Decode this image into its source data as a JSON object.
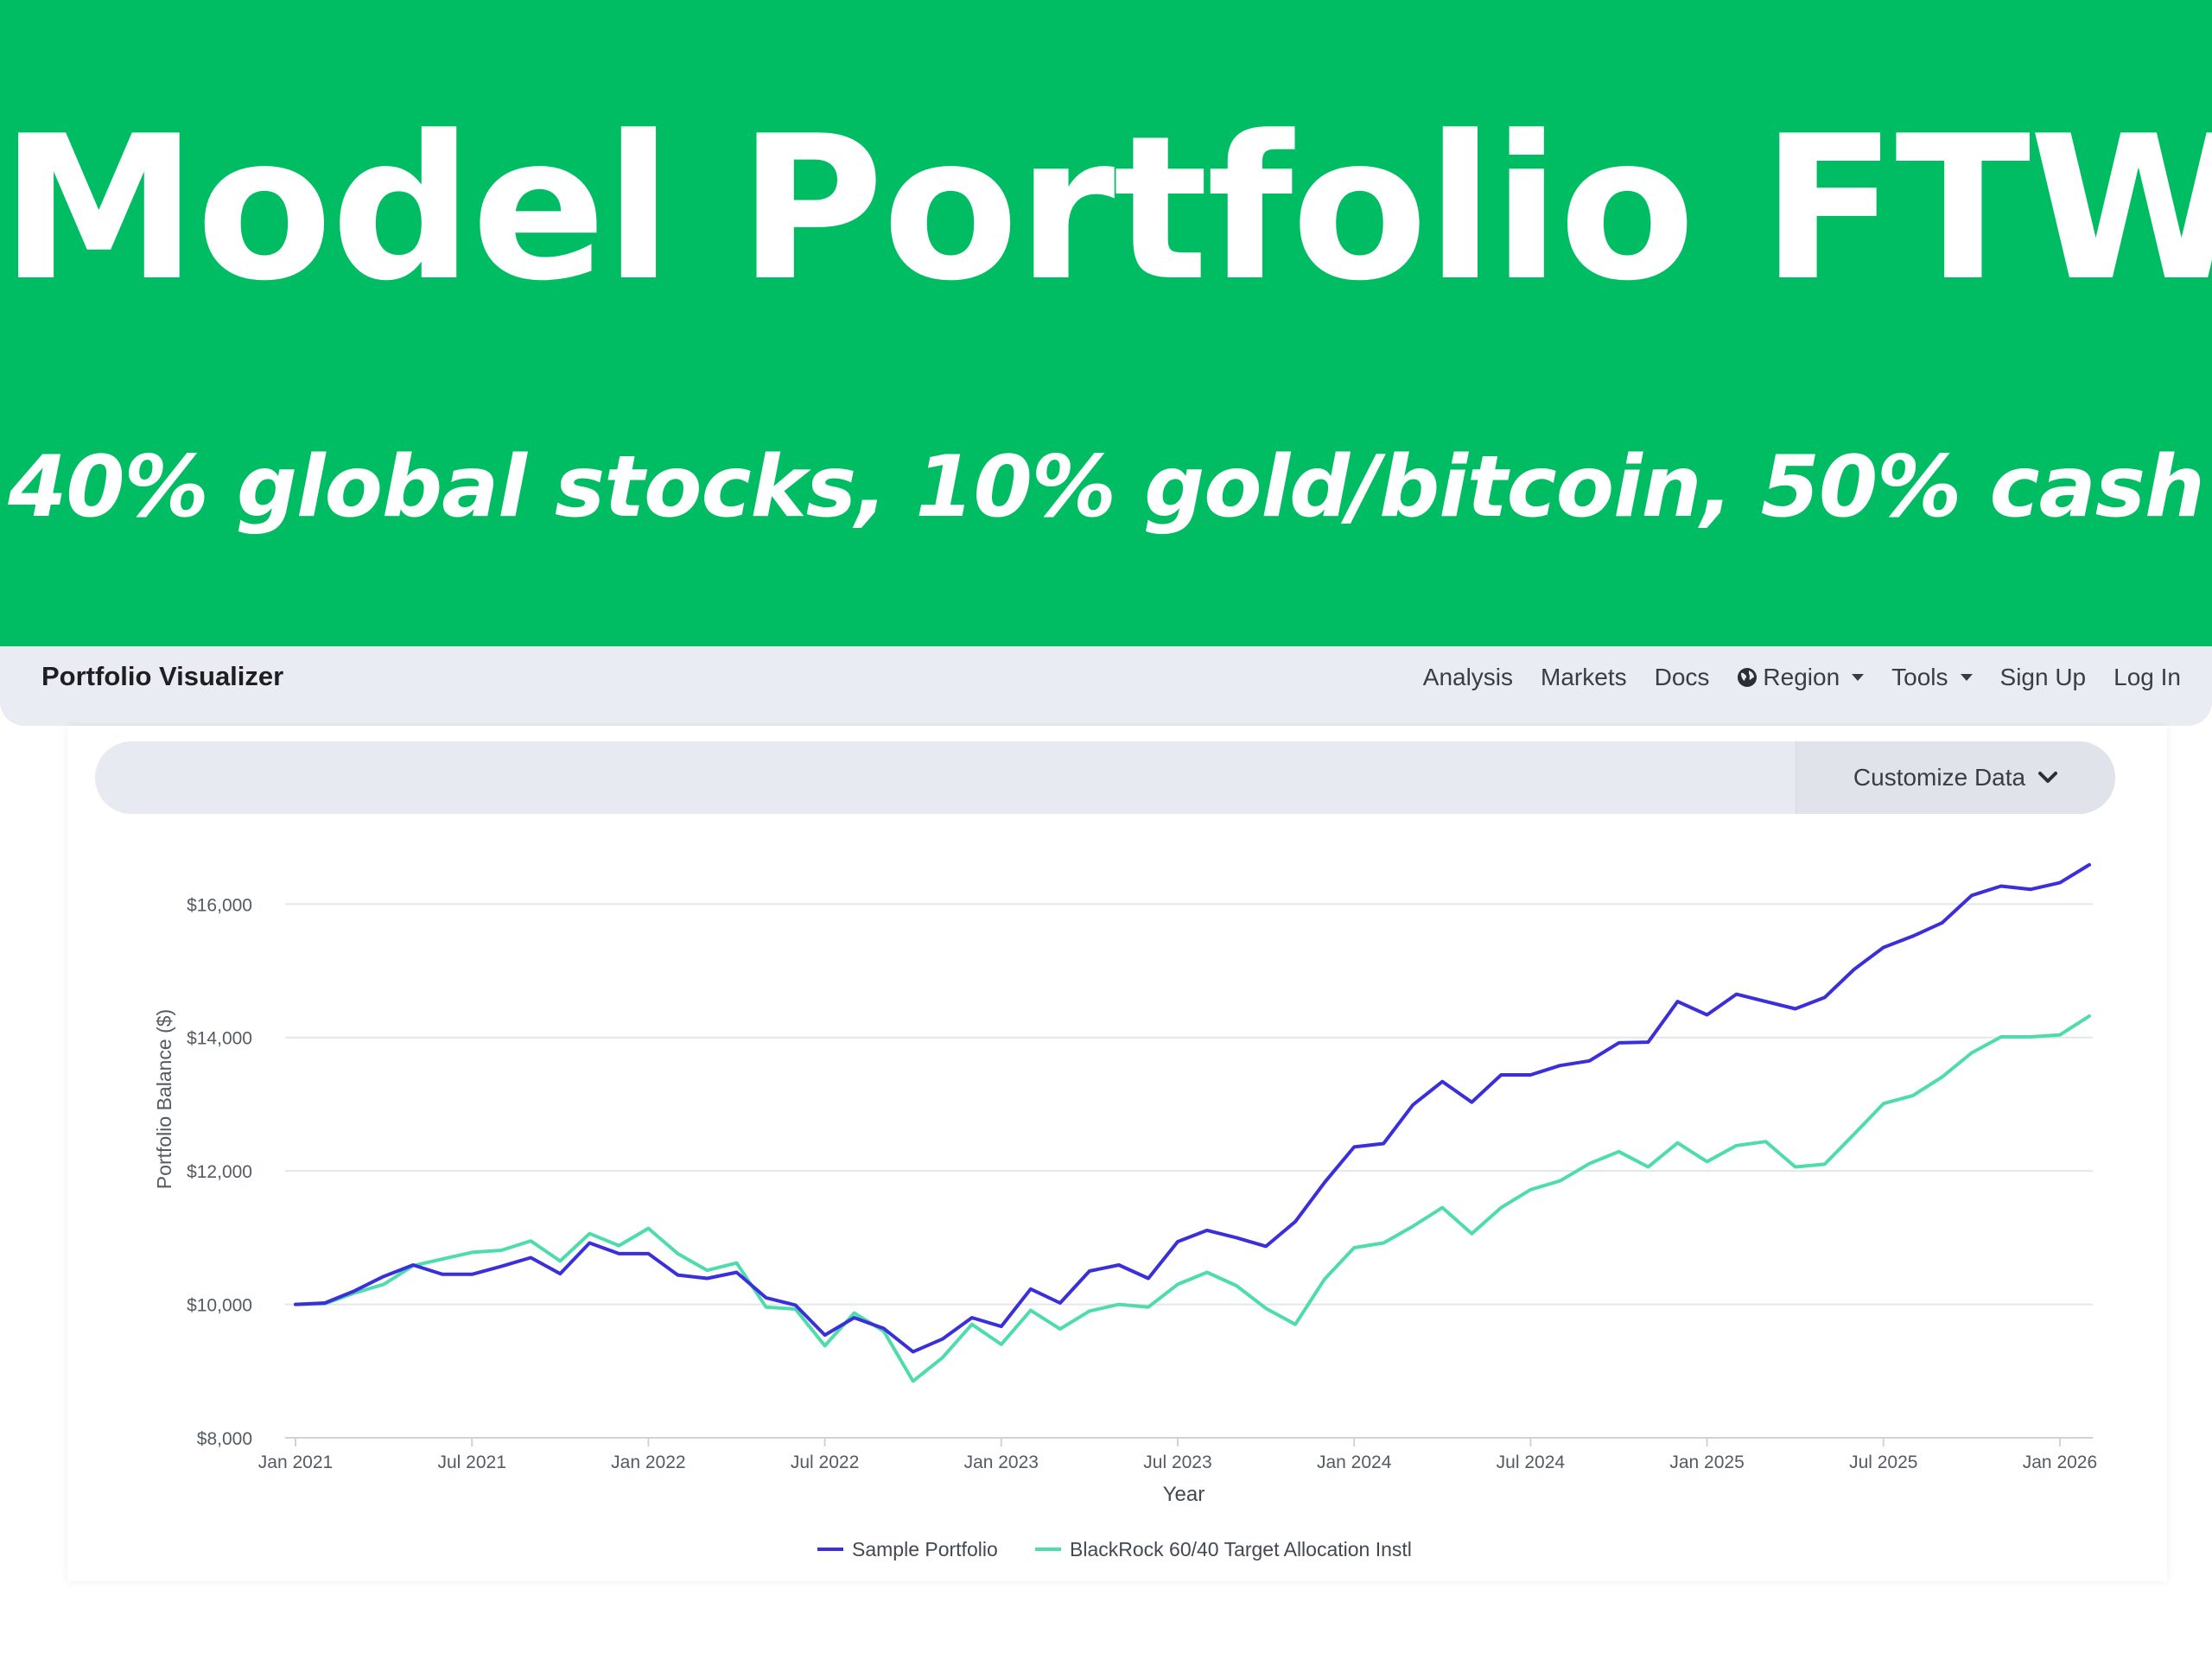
{
  "banner": {
    "title": "Model Portfolio FTW",
    "subtitle": "40% global stocks, 10% gold/bitcoin, 50% cash"
  },
  "navbar": {
    "brand": "Portfolio Visualizer",
    "items": [
      {
        "label": "Analysis"
      },
      {
        "label": "Markets"
      },
      {
        "label": "Docs"
      },
      {
        "label": "Region",
        "icon": "globe-icon",
        "dropdown": true
      },
      {
        "label": "Tools",
        "dropdown": true
      },
      {
        "label": "Sign Up"
      },
      {
        "label": "Log In"
      }
    ]
  },
  "toolbar": {
    "customize_label": "Customize Data"
  },
  "colors": {
    "banner": "#00bd63",
    "sample_portfolio": "#3a2fd8",
    "blackrock": "#4fdcac"
  },
  "chart_data": {
    "type": "line",
    "xlabel": "Year",
    "ylabel": "Portfolio Balance ($)",
    "ylim": [
      8000,
      16600
    ],
    "yticks": [
      8000,
      10000,
      12000,
      14000,
      16000
    ],
    "ytick_labels": [
      "$8,000",
      "$10,000",
      "$12,000",
      "$14,000",
      "$16,000"
    ],
    "xticks": [
      "Jan 2021",
      "Jul 2021",
      "Jan 2022",
      "Jul 2022",
      "Jan 2023",
      "Jul 2023",
      "Jan 2024",
      "Jul 2024",
      "Jan 2025",
      "Jul 2025",
      "Jan 2026"
    ],
    "x_start": "Jan 2021",
    "x_step": "1 month",
    "grid": "horizontal",
    "legend_position": "bottom",
    "series": [
      {
        "name": "Sample Portfolio",
        "color": "#3a2fd8",
        "values": [
          10000,
          10020,
          10200,
          10420,
          10590,
          10450,
          10450,
          10570,
          10700,
          10460,
          10920,
          10760,
          10760,
          10440,
          10390,
          10480,
          10100,
          9990,
          9540,
          9800,
          9640,
          9290,
          9480,
          9800,
          9670,
          10230,
          10020,
          10500,
          10590,
          10390,
          10940,
          11110,
          11000,
          10870,
          11240,
          11830,
          12360,
          12410,
          12990,
          13340,
          13030,
          13440,
          13440,
          13580,
          13650,
          13920,
          13930,
          14540,
          14340,
          14650,
          14540,
          14430,
          14600,
          15020,
          15350,
          15520,
          15720,
          16130,
          16270,
          16220,
          16320,
          16590
        ]
      },
      {
        "name": "BlackRock 60/40 Target Allocation Instl",
        "color": "#4fdcac",
        "values": [
          10000,
          10010,
          10170,
          10300,
          10580,
          10680,
          10780,
          10810,
          10950,
          10650,
          11060,
          10880,
          11140,
          10760,
          10510,
          10620,
          9960,
          9930,
          9380,
          9870,
          9600,
          8850,
          9200,
          9700,
          9400,
          9910,
          9630,
          9900,
          10000,
          9960,
          10300,
          10480,
          10280,
          9940,
          9700,
          10380,
          10850,
          10920,
          11170,
          11450,
          11060,
          11450,
          11720,
          11850,
          12110,
          12290,
          12060,
          12420,
          12140,
          12380,
          12440,
          12060,
          12100,
          12550,
          13010,
          13130,
          13410,
          13770,
          14010,
          14010,
          14040,
          14320
        ]
      }
    ]
  }
}
